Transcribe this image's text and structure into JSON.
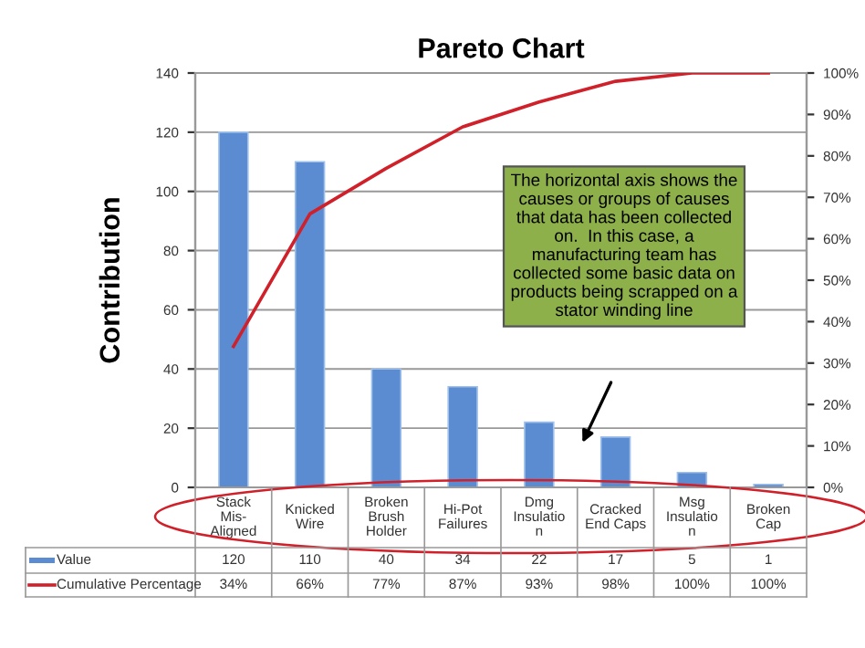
{
  "chart_data": {
    "type": "bar",
    "title": "Pareto Chart",
    "ylabel": "Contribution",
    "categories": [
      "Stack\nMis-\nAligned",
      "Knicked\nWire",
      "Broken\nBrush\nHolder",
      "Hi-Pot\nFailures",
      "Dmg\nInsulatio\nn",
      "Cracked\nEnd Caps",
      "Msg\nInsulatio\nn",
      "Broken\nCap"
    ],
    "series": [
      {
        "name": "Value",
        "color": "#5b8bd0",
        "values": [
          120,
          110,
          40,
          34,
          22,
          17,
          5,
          1
        ],
        "value_labels": [
          "120",
          "110",
          "40",
          "34",
          "22",
          "17",
          "5",
          "1"
        ]
      },
      {
        "name": "Cumulative Percentage",
        "type": "line",
        "axis": "y2",
        "color": "#d0202a",
        "values": [
          34,
          66,
          77,
          87,
          93,
          98,
          100,
          100
        ],
        "value_labels": [
          "34%",
          "66%",
          "77%",
          "87%",
          "93%",
          "98%",
          "100%",
          "100%"
        ]
      }
    ],
    "ylim": [
      0,
      140
    ],
    "yticks": [
      0,
      20,
      40,
      60,
      80,
      100,
      120,
      140
    ],
    "y2lim": [
      0,
      100
    ],
    "y2ticks": [
      {
        "value": 0,
        "label": "0%"
      },
      {
        "value": 10,
        "label": "10%"
      },
      {
        "value": 20,
        "label": "20%"
      },
      {
        "value": 30,
        "label": "30%"
      },
      {
        "value": 40,
        "label": "40%"
      },
      {
        "value": 50,
        "label": "50%"
      },
      {
        "value": 60,
        "label": "60%"
      },
      {
        "value": 70,
        "label": "70%"
      },
      {
        "value": 80,
        "label": "80%"
      },
      {
        "value": 90,
        "label": "90%"
      },
      {
        "value": 100,
        "label": "100%"
      }
    ],
    "grid": "y",
    "legend": "bottom left",
    "annotations": [
      "The horizontal axis shows the\ncauses or groups of causes\nthat data has been collected\non.  In this case, a\nmanufacturing team has\ncollected some basic data on\nproducts being scrapped on a\nstator winding line"
    ]
  }
}
